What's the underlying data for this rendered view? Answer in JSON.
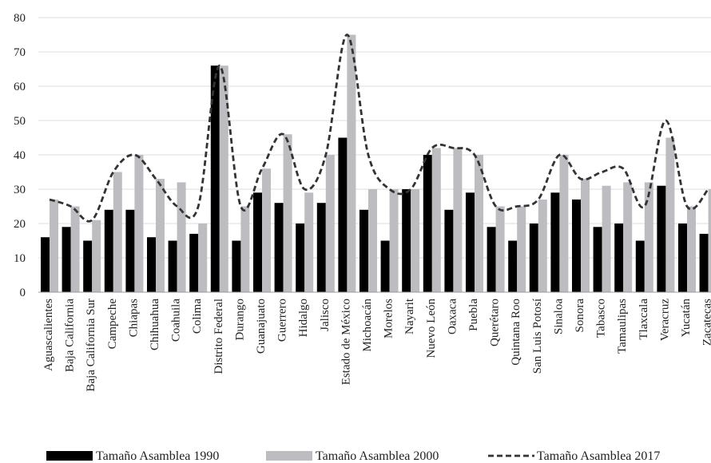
{
  "chart_data": {
    "type": "bar",
    "title": "",
    "xlabel": "",
    "ylabel": "",
    "ylim": [
      0,
      80
    ],
    "yticks": [
      0,
      10,
      20,
      30,
      40,
      50,
      60,
      70,
      80
    ],
    "grid": true,
    "legend_position": "bottom",
    "categories": [
      "Aguascalientes",
      "Baja California",
      "Baja California Sur",
      "Campeche",
      "Chiapas",
      "Chihuahua",
      "Coahuila",
      "Colima",
      "Distrito Federal",
      "Durango",
      "Guanajuato",
      "Guerrero",
      "Hidalgo",
      "Jalisco",
      "Estado de México",
      "Michoacán",
      "Morelos",
      "Nayarit",
      "Nuevo León",
      "Oaxaca",
      "Puebla",
      "Querétaro",
      "Quintana Roo",
      "San Luis Potosí",
      "Sinaloa",
      "Sonora",
      "Tabasco",
      "Tamaulipas",
      "Tlaxcala",
      "Veracruz",
      "Yucatán",
      "Zacatecas"
    ],
    "series": [
      {
        "name": "Tamaño Asamblea 1990",
        "type": "bar",
        "color": "#000000",
        "values": [
          16,
          19,
          15,
          24,
          24,
          16,
          15,
          17,
          66,
          15,
          29,
          26,
          20,
          26,
          45,
          24,
          15,
          30,
          40,
          24,
          29,
          19,
          15,
          20,
          29,
          27,
          19,
          20,
          15,
          31,
          20,
          17
        ]
      },
      {
        "name": "Tamaño Asamblea 2000",
        "type": "bar",
        "color": "#bdbcc1",
        "values": [
          27,
          25,
          21,
          35,
          40,
          33,
          32,
          20,
          66,
          25,
          36,
          46,
          29,
          40,
          75,
          30,
          30,
          30,
          42,
          42,
          40,
          25,
          25,
          27,
          40,
          33,
          31,
          32,
          32,
          45,
          25,
          30
        ]
      },
      {
        "name": "Tamaño Asamblea 2017",
        "type": "line",
        "color": "#333333",
        "values": [
          27,
          25,
          21,
          35,
          40,
          33,
          25,
          25,
          66,
          25,
          36,
          46,
          30,
          40,
          75,
          40,
          30,
          30,
          42,
          42,
          40,
          25,
          25,
          27,
          40,
          33,
          35,
          36,
          25,
          50,
          25,
          30
        ]
      }
    ]
  }
}
